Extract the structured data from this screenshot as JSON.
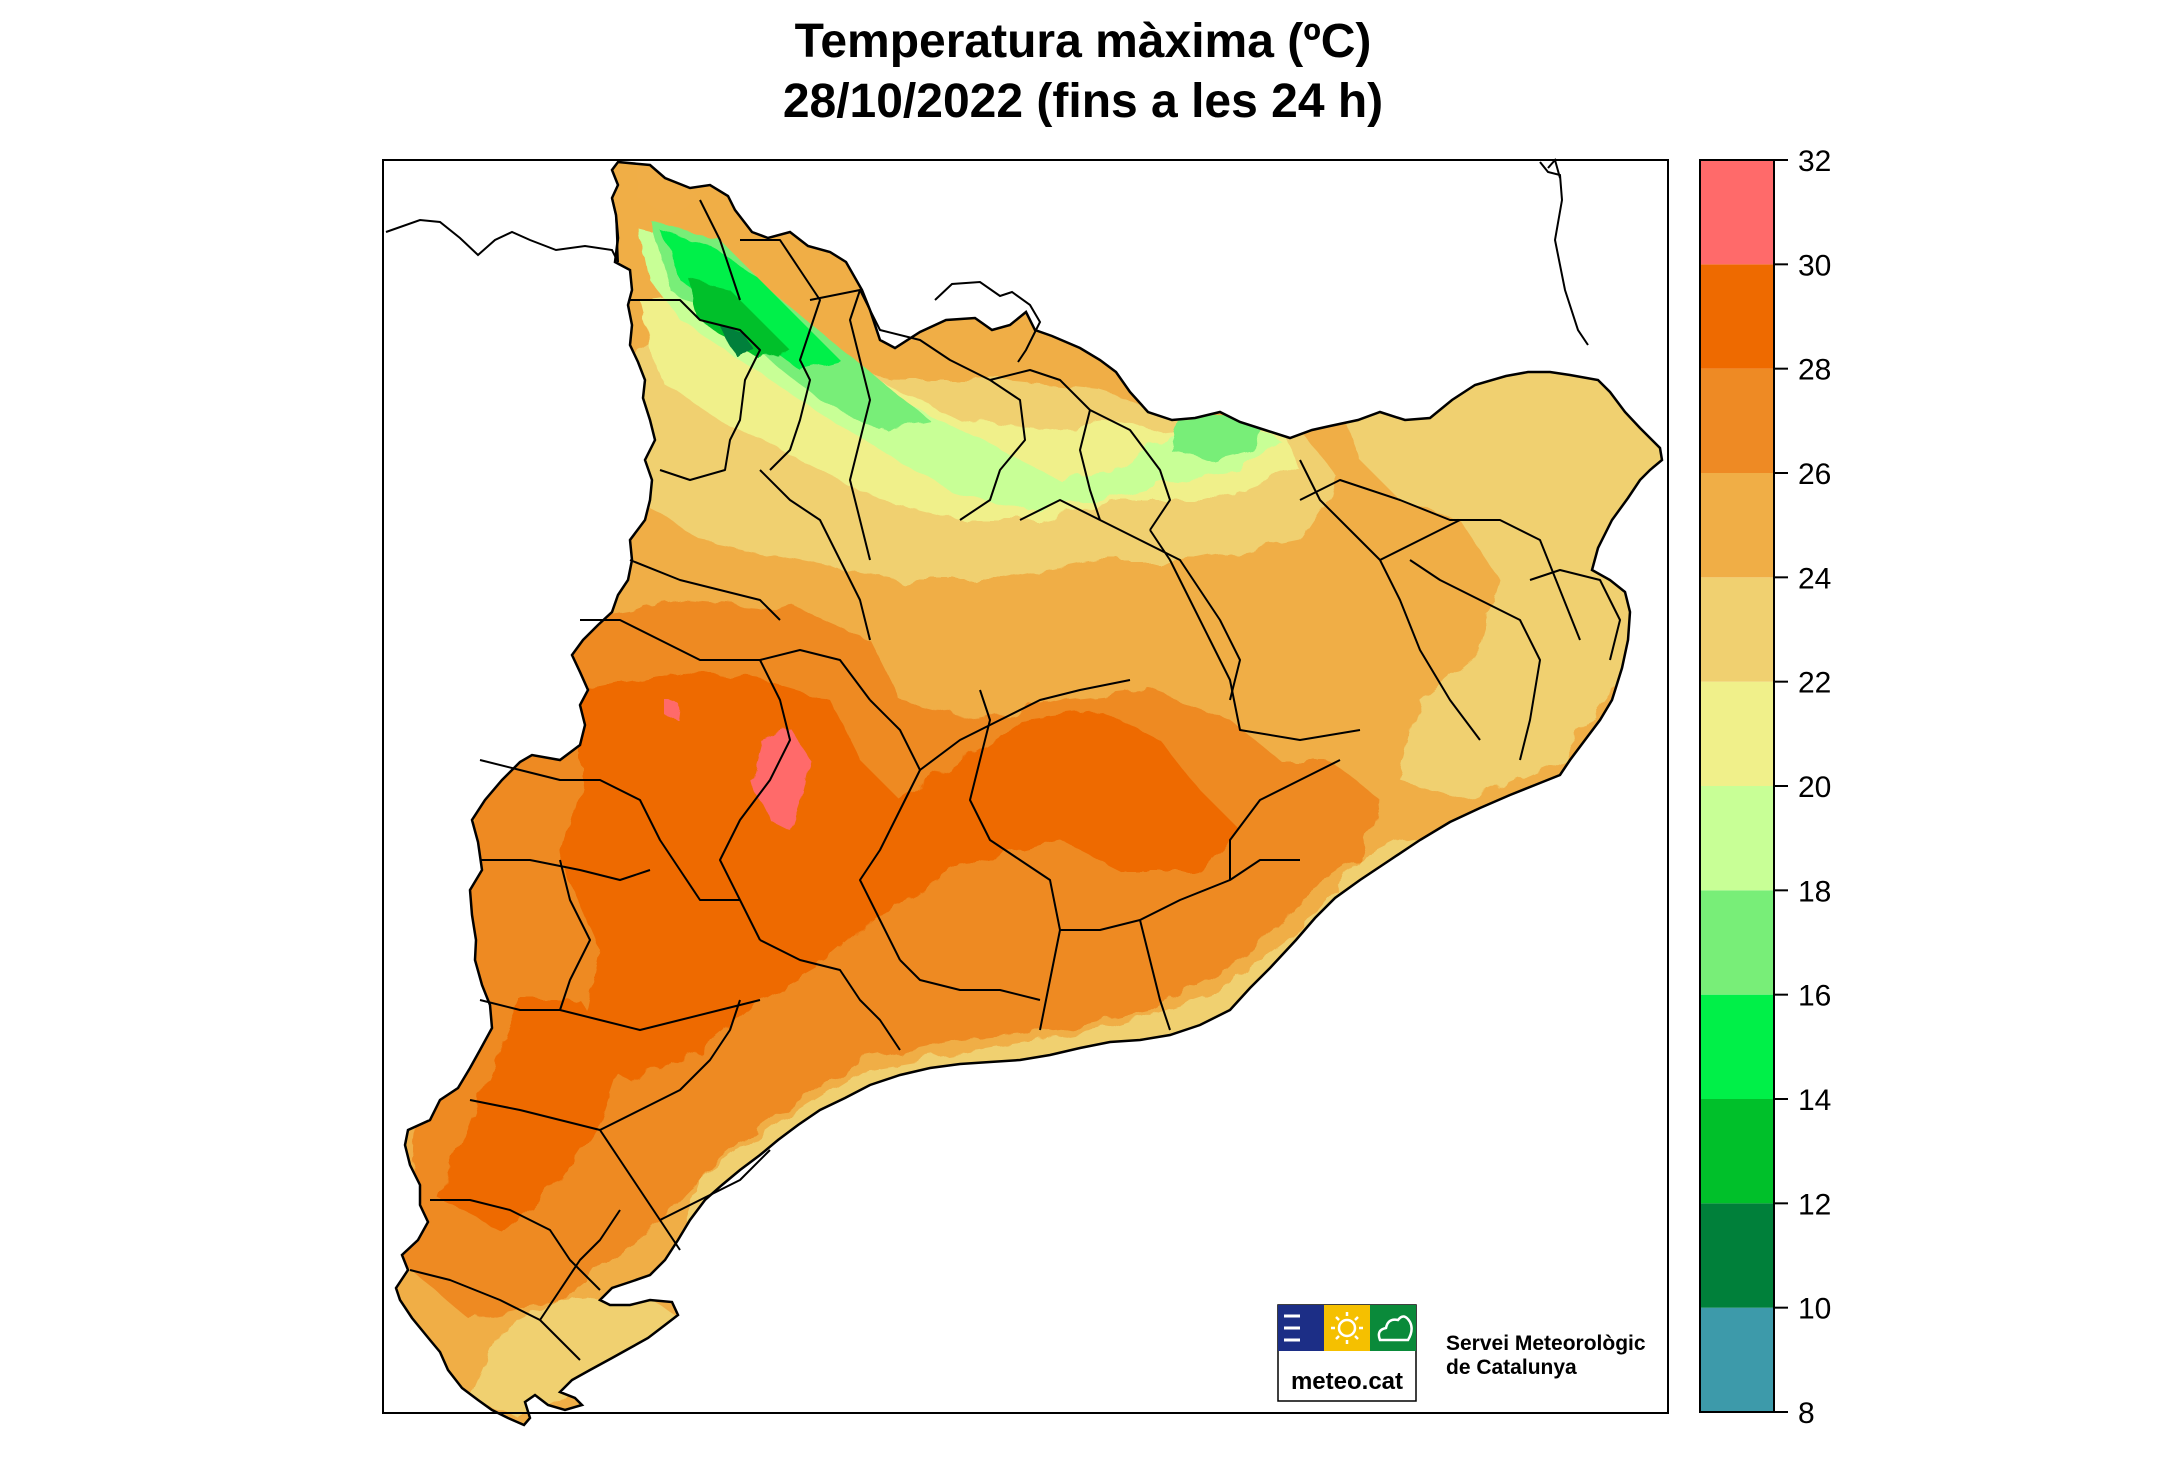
{
  "title": {
    "line1": "Temperatura màxima (ºC)",
    "line2": "28/10/2022 (fins a les 24 h)"
  },
  "legend": {
    "ticks": [
      "8",
      "10",
      "12",
      "14",
      "16",
      "18",
      "20",
      "22",
      "24",
      "26",
      "28",
      "30",
      "32"
    ],
    "colors": [
      "#3d9aaa",
      "#00803a",
      "#00c02a",
      "#00f048",
      "#78ee78",
      "#c8ff96",
      "#f0f08a",
      "#f0d070",
      "#f0ae46",
      "#ee8a24",
      "#ee6a00",
      "#ff6a6a"
    ]
  },
  "logo": {
    "name_line1": "Servei Meteorològic",
    "name_line2": "de Catalunya",
    "site": "meteo.cat",
    "icons": [
      "lines-icon",
      "sun-icon",
      "cloud-icon"
    ],
    "icon_colors": [
      "#1c2e86",
      "#f5c000",
      "#0a8a3a"
    ]
  }
}
